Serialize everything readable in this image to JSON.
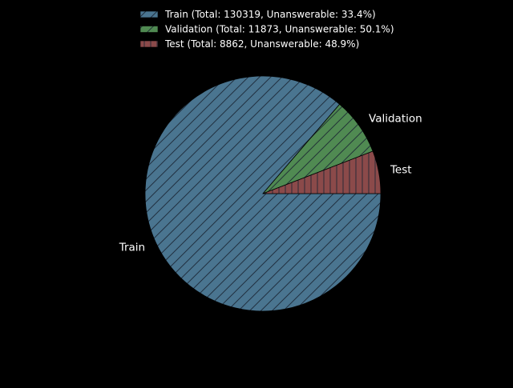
{
  "chart_data": {
    "type": "pie",
    "title": "",
    "background": "#000000",
    "start_angle_deg": 0,
    "direction": "clockwise",
    "edge_color": "#000000",
    "legend_position": "top-center",
    "slices": [
      {
        "label": "Train",
        "value": 130319,
        "legend": "Train (Total: 130319, Unanswerable: 33.4%)",
        "color": "#4a7590",
        "hatch": "diagonal"
      },
      {
        "label": "Validation",
        "value": 11873,
        "legend": "Validation (Total: 11873, Unanswerable: 50.1%)",
        "color": "#508a52",
        "hatch": "diagonal"
      },
      {
        "label": "Test",
        "value": 8862,
        "legend": "Test (Total: 8862, Unanswerable: 48.9%)",
        "color": "#8b4a4a",
        "hatch": "vertical"
      }
    ]
  }
}
